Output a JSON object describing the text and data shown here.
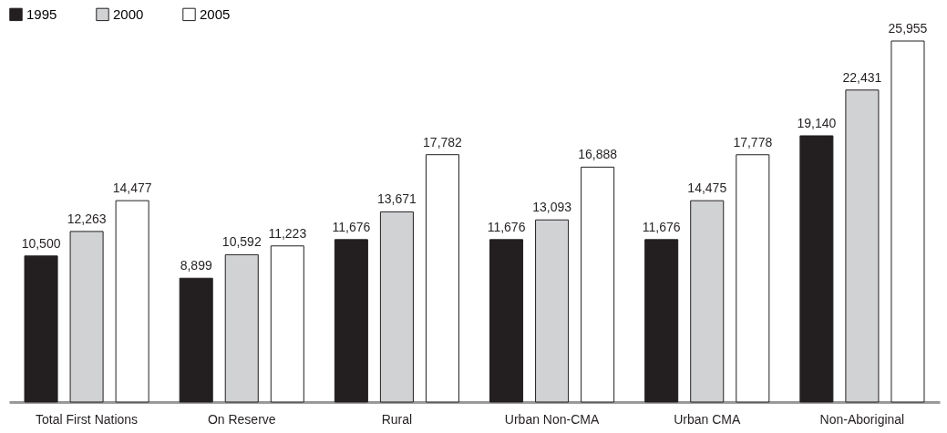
{
  "chart_data": {
    "type": "bar",
    "categories": [
      "Total First Nations",
      "On Reserve",
      "Rural",
      "Urban Non-CMA",
      "Urban CMA",
      "Non-Aboriginal"
    ],
    "series": [
      {
        "name": "1995",
        "color": "#231f20",
        "values": [
          10500,
          8899,
          11676,
          11676,
          11676,
          19140
        ],
        "value_labels": [
          "10,500",
          "8,899",
          "11,676",
          "11,676",
          "11,676",
          "19,140"
        ]
      },
      {
        "name": "2000",
        "color": "#d1d2d4",
        "values": [
          12263,
          10592,
          13671,
          13093,
          14475,
          22431
        ],
        "value_labels": [
          "12,263",
          "10,592",
          "13,671",
          "13,093",
          "14,475",
          "22,431"
        ]
      },
      {
        "name": "2005",
        "color": "#ffffff",
        "values": [
          14477,
          11223,
          17782,
          16888,
          17778,
          25955
        ],
        "value_labels": [
          "14,477",
          "11,223",
          "17,782",
          "16,888",
          "17,778",
          "25,955"
        ]
      }
    ],
    "legend": "top left"
  }
}
